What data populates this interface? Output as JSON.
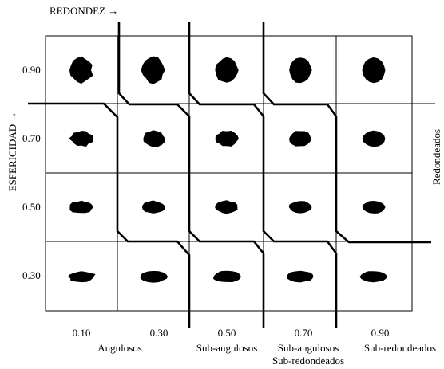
{
  "header": {
    "x_axis": "REDONDEZ →",
    "y_axis": "ESFERICIDAD →",
    "right_label": "Redondeados"
  },
  "y_labels": [
    "0.90",
    "0.70",
    "0.50",
    "0.30"
  ],
  "x_labels": [
    "0.10",
    "0.30",
    "0.50",
    "0.70",
    "0.90"
  ],
  "classes": [
    "Angulosos",
    "Sub-angulosos",
    "Sub-angulosos",
    "Sub-redondeados",
    "Sub-redondeados"
  ]
}
